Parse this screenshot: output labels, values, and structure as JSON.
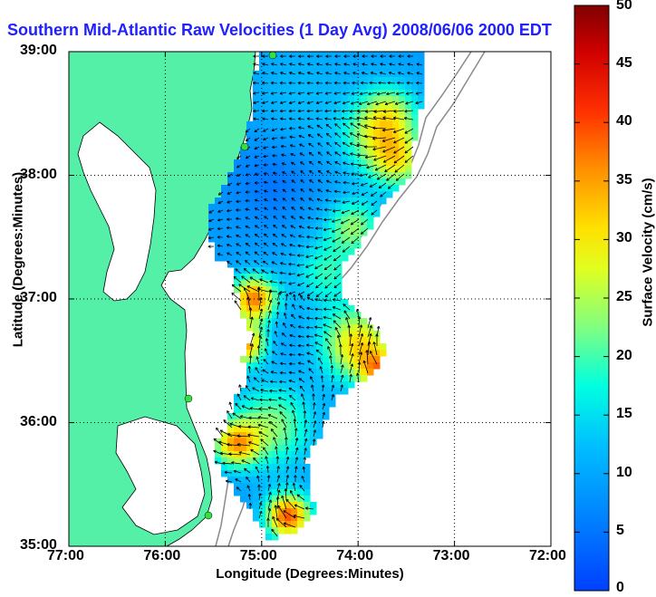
{
  "title": "Southern Mid-Atlantic Raw Velocities (1 Day Avg) 2008/06/06 2000 EDT",
  "x_axis_label": "Longitude (Degrees:Minutes)",
  "y_axis_label": "Latitude (Degrees:Minutes)",
  "colorbar_label": "Surface Velocity (cm/s)",
  "x_ticks": [
    "77:00",
    "76:00",
    "75:00",
    "74:00",
    "73:00",
    "72:00"
  ],
  "y_ticks": [
    "39:00",
    "38:00",
    "37:00",
    "36:00",
    "35:00"
  ],
  "colorbar_ticks": [
    "0",
    "5",
    "10",
    "15",
    "20",
    "25",
    "30",
    "35",
    "40",
    "45",
    "50"
  ],
  "map": {
    "lon_range": [
      -77,
      -72
    ],
    "lat_range": [
      35,
      39
    ],
    "grid": "dotted",
    "land_color": "#55f0a8",
    "colormap": "jet",
    "velocity_range_cm_s": [
      0,
      50
    ]
  }
}
